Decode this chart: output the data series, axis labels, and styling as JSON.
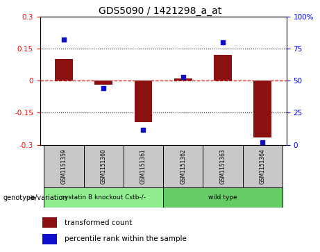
{
  "title": "GDS5090 / 1421298_a_at",
  "samples": [
    "GSM1151359",
    "GSM1151360",
    "GSM1151361",
    "GSM1151362",
    "GSM1151363",
    "GSM1151364"
  ],
  "bar_values": [
    0.1,
    -0.02,
    -0.195,
    0.01,
    0.12,
    -0.265
  ],
  "percentile_values": [
    82,
    44,
    12,
    53,
    80,
    2
  ],
  "groups": [
    {
      "label": "cystatin B knockout Cstb-/-",
      "indices": [
        0,
        1,
        2
      ],
      "color": "#90EE90"
    },
    {
      "label": "wild type",
      "indices": [
        3,
        4,
        5
      ],
      "color": "#66CC66"
    }
  ],
  "ylim_left": [
    -0.3,
    0.3
  ],
  "ylim_right": [
    0,
    100
  ],
  "yticks_left": [
    -0.3,
    -0.15,
    0.0,
    0.15,
    0.3
  ],
  "yticks_right": [
    0,
    25,
    50,
    75,
    100
  ],
  "bar_color": "#8B1010",
  "dot_color": "#1010CC",
  "hline_color": "#DD0000",
  "grid_color": "#111111",
  "genotype_label": "genotype/variation",
  "legend_bar": "transformed count",
  "legend_dot": "percentile rank within the sample",
  "bar_width": 0.45
}
